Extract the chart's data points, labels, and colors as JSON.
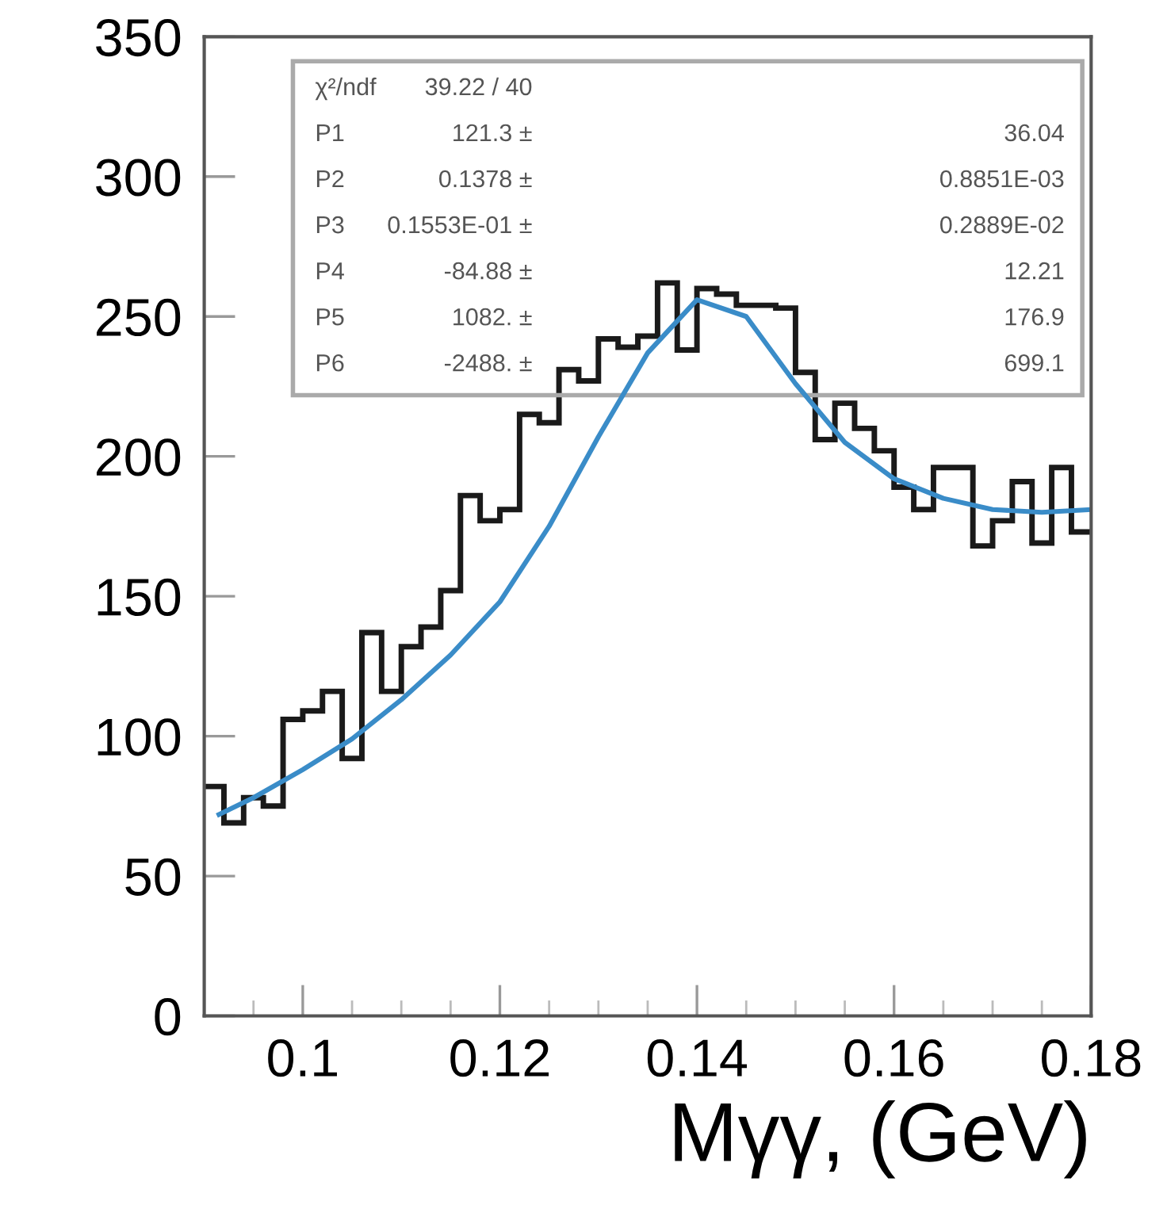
{
  "chart_data": {
    "type": "histogram",
    "xlabel": "Mγγ, (GeV)",
    "bins": [
      0.09,
      0.092,
      0.094,
      0.096,
      0.098,
      0.1,
      0.102,
      0.104,
      0.106,
      0.108,
      0.11,
      0.112,
      0.114,
      0.116,
      0.118,
      0.12,
      0.122,
      0.124,
      0.126,
      0.128,
      0.13,
      0.132,
      0.134,
      0.136,
      0.138,
      0.14,
      0.142,
      0.144,
      0.146,
      0.148,
      0.15,
      0.152,
      0.154,
      0.156,
      0.158,
      0.16,
      0.162,
      0.164,
      0.166,
      0.168,
      0.17,
      0.172,
      0.174,
      0.176,
      0.178,
      0.18
    ],
    "values": [
      82,
      69,
      78,
      75,
      106,
      109,
      116,
      92,
      137,
      116,
      132,
      139,
      152,
      186,
      177,
      181,
      215,
      212,
      231,
      227,
      242,
      239,
      243,
      262,
      238,
      260,
      258,
      254,
      254,
      253,
      230,
      206,
      219,
      210,
      202,
      189,
      181,
      196,
      196,
      168,
      177,
      191,
      169,
      196,
      173
    ],
    "color": "#1a1a1a",
    "series": [
      {
        "type": "line",
        "color": "#3a8cc8",
        "x": [
          0.0915,
          0.095,
          0.1,
          0.105,
          0.11,
          0.115,
          0.12,
          0.125,
          0.13,
          0.135,
          0.14,
          0.145,
          0.15,
          0.155,
          0.16,
          0.165,
          0.17,
          0.175,
          0.18
        ],
        "values": [
          72,
          78,
          88,
          99,
          113,
          129,
          148,
          175,
          207,
          237,
          256,
          250,
          226,
          205,
          192,
          185,
          181,
          180,
          181
        ]
      }
    ],
    "xlim": [
      0.09,
      0.18
    ],
    "xticks": [
      0.1,
      0.12,
      0.14,
      0.16,
      0.18
    ],
    "ylim": [
      0,
      350
    ],
    "yticks": [
      0,
      50,
      100,
      150,
      200,
      250,
      300,
      350
    ],
    "grid": false,
    "legend": false,
    "annotations": [
      "χ²/ndf  39.22 / 40",
      "P1  121.3 ±  36.04",
      "P2  0.1378 ±  0.8851E-03",
      "P3  0.1553E-01 ±  0.2889E-02",
      "P4  -84.88 ±  12.21",
      "P5  1082. ±  176.9",
      "P6  -2488. ±  699.1"
    ]
  }
}
